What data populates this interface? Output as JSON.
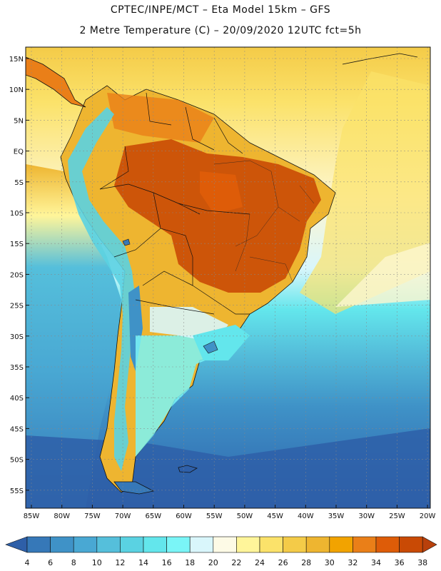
{
  "title_line1": "CPTEC/INPE/MCT –   Eta Model 15km – GFS",
  "title_line2": "2 Metre Temperature (C) – 20/09/2020 12UTC fct=5h",
  "lat_labels": [
    "15N",
    "10N",
    "5N",
    "EQ",
    "5S",
    "10S",
    "15S",
    "20S",
    "25S",
    "30S",
    "35S",
    "40S",
    "45S",
    "50S",
    "55S"
  ],
  "lon_labels": [
    "85W",
    "80W",
    "75W",
    "70W",
    "65W",
    "60W",
    "55W",
    "50W",
    "45W",
    "40W",
    "35W",
    "30W",
    "25W",
    "20W"
  ],
  "colorbar": {
    "ticks": [
      "4",
      "6",
      "8",
      "10",
      "12",
      "14",
      "16",
      "18",
      "20",
      "22",
      "24",
      "26",
      "28",
      "30",
      "32",
      "34",
      "36",
      "38"
    ],
    "colors": [
      "#2e5fa8",
      "#3678b8",
      "#3f92c7",
      "#49a8d3",
      "#55bfdb",
      "#5ad2e2",
      "#63e6ec",
      "#7af5f7",
      "#d9f6fb",
      "#fdfae6",
      "#fff59a",
      "#fbe26a",
      "#f4cb48",
      "#eeb530",
      "#f2a300",
      "#ea7f18",
      "#de5c08",
      "#c94a05",
      "#b8400b"
    ]
  },
  "map_colors": {
    "ocean_far": "#2e5fa8",
    "ocean_mid": "#3678b8",
    "ocean_cool": "#49a8d3",
    "ocean_cyan": "#5ad2e2",
    "ocean_light": "#7af5f7",
    "ocean_pale": "#d9f6fb",
    "atlantic_warm": "#fbe26a",
    "caribbean": "#f4cb48",
    "land_hot": "#c94a05",
    "land_warm": "#eeb530",
    "andes_cold": "#5ad2e2"
  }
}
